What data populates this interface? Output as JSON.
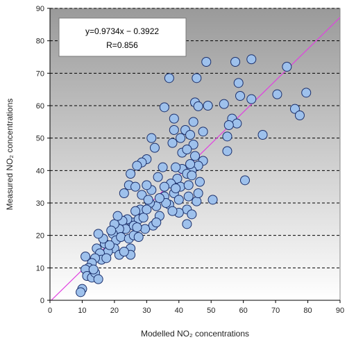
{
  "chart_data": {
    "type": "scatter",
    "xlabel": "Modelled NO₂ concentrations",
    "ylabel": "Measured NO₂ concentrations",
    "xlim": [
      0,
      90
    ],
    "ylim": [
      0,
      90
    ],
    "xticks": [
      0,
      10,
      20,
      30,
      40,
      50,
      60,
      70,
      80,
      90
    ],
    "yticks": [
      0,
      10,
      20,
      30,
      40,
      50,
      60,
      70,
      80,
      90
    ],
    "grid": "horizontal dashed",
    "annotation": {
      "equation": "y=0.9734x − 0.3922",
      "r_value": "R=0.856"
    },
    "regression": {
      "slope": 0.9734,
      "intercept": -0.3922
    },
    "colors": {
      "marker_fill": "#9ec1ec",
      "marker_edge": "#1a2f6b",
      "regression_line": "#e040e0",
      "background_top": "#9a9a9a",
      "background_bottom": "#ffffff"
    },
    "points": [
      [
        37,
        68.5
      ],
      [
        48.5,
        73.5
      ],
      [
        57.5,
        73.5
      ],
      [
        62.5,
        74.3
      ],
      [
        73.5,
        72
      ],
      [
        76,
        59
      ],
      [
        77.5,
        57
      ],
      [
        79.5,
        64
      ],
      [
        70.5,
        63.5
      ],
      [
        58.5,
        67
      ],
      [
        59,
        63
      ],
      [
        62.5,
        62
      ],
      [
        66,
        51
      ],
      [
        60.5,
        37
      ],
      [
        56.5,
        56
      ],
      [
        58,
        54.5
      ],
      [
        54,
        60.5
      ],
      [
        55.5,
        54
      ],
      [
        55,
        50.5
      ],
      [
        55,
        46
      ],
      [
        49,
        60
      ],
      [
        45,
        61
      ],
      [
        46,
        59.8
      ],
      [
        45.5,
        68.5
      ],
      [
        35.5,
        59.5
      ],
      [
        38.5,
        56
      ],
      [
        38.5,
        52.5
      ],
      [
        42,
        52.5
      ],
      [
        43.5,
        51
      ],
      [
        40.5,
        50
      ],
      [
        47.5,
        52
      ],
      [
        44.5,
        48
      ],
      [
        38,
        48.5
      ],
      [
        41,
        45.5
      ],
      [
        45,
        44.5
      ],
      [
        47.5,
        43
      ],
      [
        46,
        41.5
      ],
      [
        44,
        40
      ],
      [
        41,
        40.5
      ],
      [
        42.5,
        39
      ],
      [
        39.5,
        37.5
      ],
      [
        37.5,
        36
      ],
      [
        40.5,
        35
      ],
      [
        43,
        35.5
      ],
      [
        46.5,
        36.5
      ],
      [
        35,
        41
      ],
      [
        33.5,
        38
      ],
      [
        35.5,
        35
      ],
      [
        38.5,
        33
      ],
      [
        40,
        31
      ],
      [
        43,
        32
      ],
      [
        45.5,
        30.5
      ],
      [
        50.5,
        31
      ],
      [
        42.5,
        28
      ],
      [
        42.5,
        23.5
      ],
      [
        40,
        27
      ],
      [
        35.5,
        32
      ],
      [
        37,
        29.5
      ],
      [
        38,
        27.5
      ],
      [
        33,
        29
      ],
      [
        34,
        26
      ],
      [
        31,
        30
      ],
      [
        31.5,
        50
      ],
      [
        32.5,
        47
      ],
      [
        30,
        43.5
      ],
      [
        28.5,
        42.5
      ],
      [
        27,
        41.5
      ],
      [
        25,
        39
      ],
      [
        24.5,
        35.5
      ],
      [
        23,
        33
      ],
      [
        26.5,
        35
      ],
      [
        28.5,
        32.5
      ],
      [
        30.5,
        31
      ],
      [
        32,
        23
      ],
      [
        28,
        28
      ],
      [
        26.5,
        27.5
      ],
      [
        25.5,
        24
      ],
      [
        27.5,
        25
      ],
      [
        29,
        25.5
      ],
      [
        29.5,
        22
      ],
      [
        24,
        25
      ],
      [
        22.5,
        24.5
      ],
      [
        23.5,
        22
      ],
      [
        21.5,
        22
      ],
      [
        20,
        23.5
      ],
      [
        19.5,
        20.5
      ],
      [
        20.5,
        18.5
      ],
      [
        22,
        19.5
      ],
      [
        24.5,
        19
      ],
      [
        26,
        20
      ],
      [
        27.5,
        19.5
      ],
      [
        25,
        16
      ],
      [
        25,
        14
      ],
      [
        20,
        16
      ],
      [
        18,
        15
      ],
      [
        17,
        17.5
      ],
      [
        18.5,
        17
      ],
      [
        16.5,
        19
      ],
      [
        15,
        20.5
      ],
      [
        14.5,
        16
      ],
      [
        15.5,
        14.5
      ],
      [
        16,
        12.5
      ],
      [
        14,
        13
      ],
      [
        13,
        11.5
      ],
      [
        12,
        10
      ],
      [
        12.5,
        8.5
      ],
      [
        11,
        13.5
      ],
      [
        11,
        9.5
      ],
      [
        11.5,
        7.5
      ],
      [
        13,
        7
      ],
      [
        14,
        8.5
      ],
      [
        15,
        6.5
      ],
      [
        13.5,
        9.5
      ],
      [
        10,
        3.5
      ],
      [
        9.5,
        2.5
      ],
      [
        21.5,
        14
      ],
      [
        23,
        15
      ],
      [
        26,
        23
      ],
      [
        27,
        22.5
      ],
      [
        30,
        28
      ],
      [
        36,
        30
      ],
      [
        44,
        38.5
      ],
      [
        46,
        33
      ],
      [
        39,
        41
      ],
      [
        43.5,
        42
      ],
      [
        42.5,
        46.5
      ],
      [
        44.5,
        55
      ],
      [
        39,
        34.5
      ],
      [
        34,
        31.5
      ],
      [
        31.5,
        34
      ],
      [
        21,
        26
      ],
      [
        19,
        21.5
      ],
      [
        17.5,
        13
      ],
      [
        30,
        35.5
      ],
      [
        33,
        24
      ],
      [
        44,
        26.5
      ]
    ]
  }
}
